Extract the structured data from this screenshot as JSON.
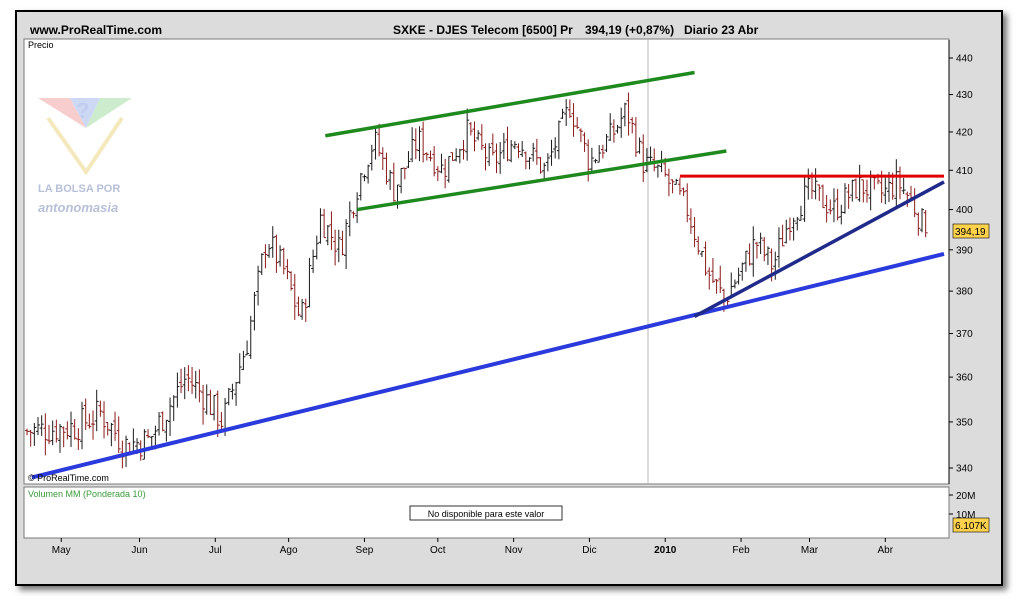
{
  "header": {
    "site": "www.ProRealTime.com",
    "instrument": "SXKE - DJES Telecom [6500] Pr",
    "price_change": "394,19 (+0,87%)",
    "period": "Diario  23 Abr"
  },
  "price_panel": {
    "label": "Precio",
    "copyright": "© ProRealTime.com",
    "current_price_label": "394,19"
  },
  "volume_panel": {
    "label": "Volumen MM (Ponderada 10)",
    "message": "No disponible para este valor",
    "y_ticks": [
      "20M",
      "10M"
    ],
    "current_label": "6.107K"
  },
  "logo": {
    "line1": "LA BOLSA POR",
    "line2": "antonomasia"
  },
  "chart_data": {
    "type": "bar",
    "style": "ohlc",
    "title": "SXKE - DJES Telecom [6500] Pr",
    "x_tick_labels": [
      "May",
      "Jun",
      "Jul",
      "Ago",
      "Sep",
      "Oct",
      "Nov",
      "Dic",
      "2010",
      "Feb",
      "Mar",
      "Abr"
    ],
    "y_ticks": [
      340,
      350,
      360,
      370,
      380,
      390,
      400,
      410,
      420,
      430,
      440
    ],
    "ylim": [
      337,
      445
    ],
    "y_scale": "log",
    "last_close": 394.19,
    "price_path_points": [
      {
        "day": 0,
        "price": 348
      },
      {
        "day": 20,
        "price": 349
      },
      {
        "day": 30,
        "price": 352
      },
      {
        "day": 40,
        "price": 345
      },
      {
        "day": 50,
        "price": 346
      },
      {
        "day": 65,
        "price": 360
      },
      {
        "day": 72,
        "price": 356
      },
      {
        "day": 80,
        "price": 350
      },
      {
        "day": 90,
        "price": 368
      },
      {
        "day": 98,
        "price": 393
      },
      {
        "day": 105,
        "price": 385
      },
      {
        "day": 112,
        "price": 373
      },
      {
        "day": 120,
        "price": 398
      },
      {
        "day": 128,
        "price": 390
      },
      {
        "day": 136,
        "price": 408
      },
      {
        "day": 142,
        "price": 418
      },
      {
        "day": 150,
        "price": 405
      },
      {
        "day": 160,
        "price": 418
      },
      {
        "day": 170,
        "price": 410
      },
      {
        "day": 180,
        "price": 420
      },
      {
        "day": 190,
        "price": 412
      },
      {
        "day": 200,
        "price": 418
      },
      {
        "day": 212,
        "price": 410
      },
      {
        "day": 222,
        "price": 427
      },
      {
        "day": 230,
        "price": 412
      },
      {
        "day": 240,
        "price": 420
      },
      {
        "day": 245,
        "price": 426
      },
      {
        "day": 252,
        "price": 412
      },
      {
        "day": 260,
        "price": 409
      },
      {
        "day": 270,
        "price": 400
      },
      {
        "day": 278,
        "price": 385
      },
      {
        "day": 285,
        "price": 378
      },
      {
        "day": 292,
        "price": 385
      },
      {
        "day": 298,
        "price": 392
      },
      {
        "day": 305,
        "price": 386
      },
      {
        "day": 312,
        "price": 398
      },
      {
        "day": 320,
        "price": 405
      },
      {
        "day": 330,
        "price": 400
      },
      {
        "day": 340,
        "price": 406
      },
      {
        "day": 350,
        "price": 404
      },
      {
        "day": 356,
        "price": 407
      },
      {
        "day": 362,
        "price": 402
      },
      {
        "day": 368,
        "price": 394
      }
    ],
    "trendlines": [
      {
        "name": "canal-superior",
        "color": "#1e8a1e",
        "p1": {
          "day": 122,
          "price": 419
        },
        "p2": {
          "day": 273,
          "price": 436
        }
      },
      {
        "name": "canal-inferior",
        "color": "#1e8a1e",
        "p1": {
          "day": 135,
          "price": 400
        },
        "p2": {
          "day": 286,
          "price": 415
        }
      },
      {
        "name": "resistencia",
        "color": "#e00000",
        "p1": {
          "day": 267,
          "price": 408.5
        },
        "p2": {
          "day": 375,
          "price": 408.5
        }
      },
      {
        "name": "soporte-largo",
        "color": "#2a3adc",
        "p1": {
          "day": 2,
          "price": 338
        },
        "p2": {
          "day": 375,
          "price": 389
        }
      },
      {
        "name": "soporte-corto",
        "color": "#1f2a8a",
        "p1": {
          "day": 273,
          "price": 374
        },
        "p2": {
          "day": 375,
          "price": 407
        }
      }
    ]
  },
  "colors": {
    "up_bar": "#1a1a1a",
    "down_bar": "#8b1a1a",
    "channel": "#1e8a1e",
    "resistance": "#e00000",
    "support": "#2a3adc",
    "support_dark": "#1f2a8a",
    "price_tag_bg": "#ffd24d",
    "panel_border": "#7a7a7a"
  }
}
